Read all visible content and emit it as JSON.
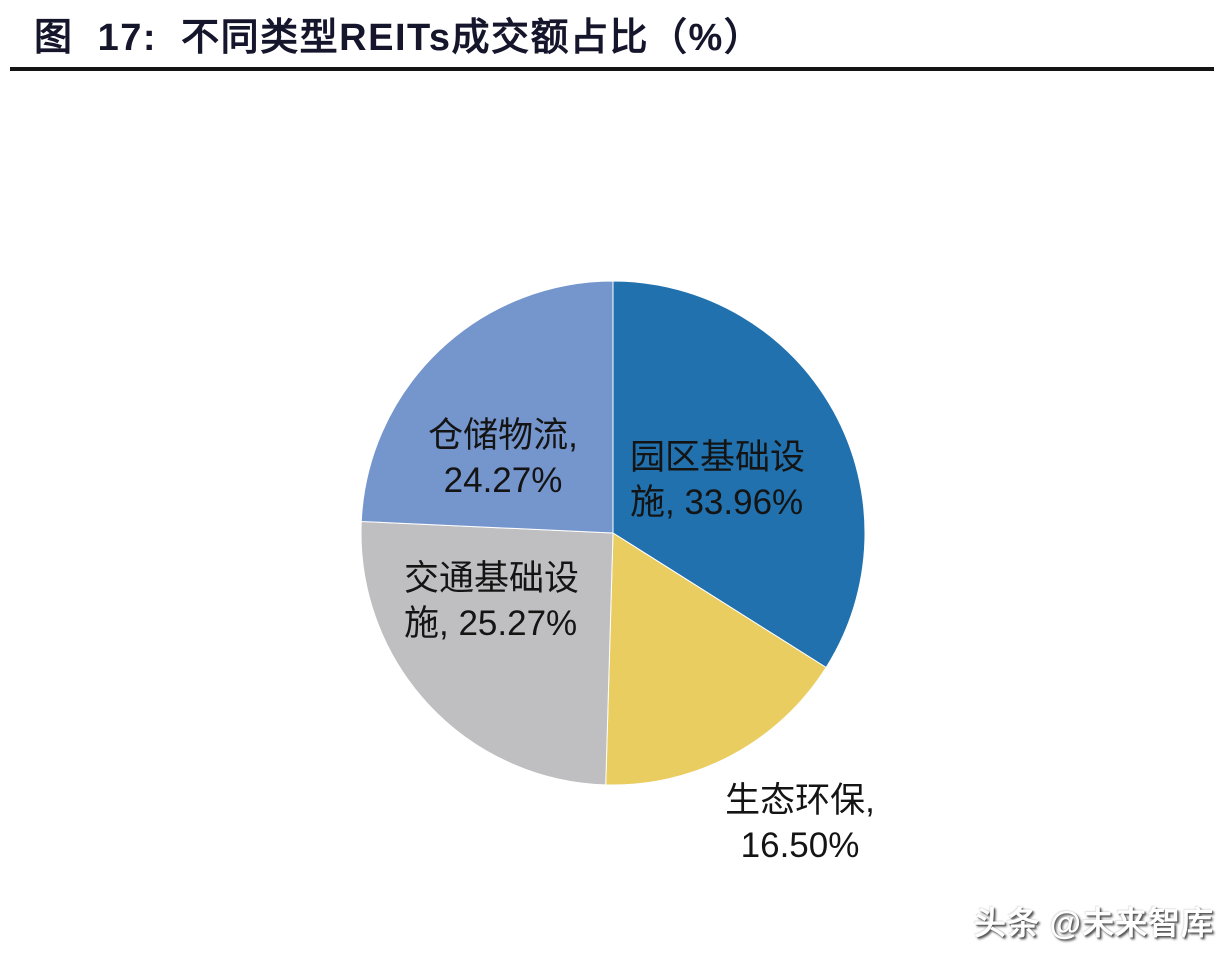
{
  "title": "图  17:  不同类型REITs成交额占比（%）",
  "watermark": "头条 @未来智库",
  "chart_data": {
    "type": "pie",
    "title": "不同类型REITs成交额占比（%）",
    "figure_number": "图 17",
    "start_angle_deg": 0,
    "direction": "clockwise",
    "legend": "none",
    "label_format": "name, value%",
    "slices": [
      {
        "name": "园区基础设施",
        "value": 33.96,
        "color": "#2071AE",
        "label_placement": "inside",
        "label_lines": [
          "园区基础设",
          "施, 33.96%"
        ]
      },
      {
        "name": "生态环保",
        "value": 16.5,
        "color": "#EACD60",
        "label_placement": "outside-bottom-right",
        "label_lines": [
          "生态环保,",
          "16.50%"
        ]
      },
      {
        "name": "交通基础设施",
        "value": 25.27,
        "color": "#BFBFC1",
        "label_placement": "inside",
        "label_lines": [
          "交通基础设",
          "施, 25.27%"
        ]
      },
      {
        "name": "仓储物流",
        "value": 24.27,
        "color": "#7595CD",
        "label_placement": "inside",
        "label_lines": [
          "仓储物流,",
          "24.27%"
        ]
      }
    ],
    "label_text_color": "#141414"
  }
}
